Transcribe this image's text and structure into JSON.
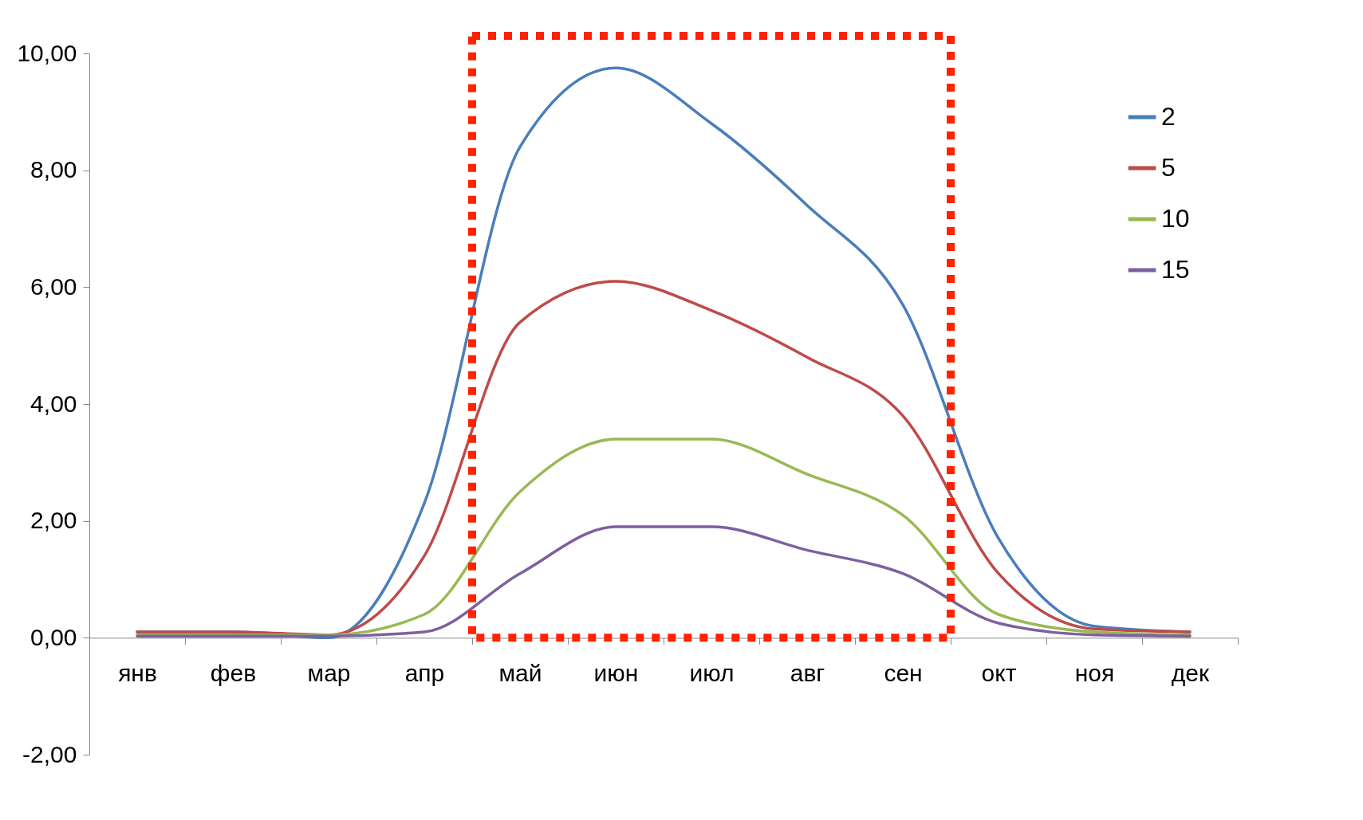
{
  "chart_data": {
    "type": "line",
    "categories": [
      "янв",
      "фев",
      "мар",
      "апр",
      "май",
      "июн",
      "июл",
      "авг",
      "сен",
      "окт",
      "ноя",
      "дек"
    ],
    "series": [
      {
        "name": "2",
        "color": "#4a7ebb",
        "values": [
          0.1,
          0.1,
          0.0,
          2.3,
          8.4,
          9.75,
          8.8,
          7.4,
          5.7,
          1.7,
          0.2,
          0.1
        ]
      },
      {
        "name": "5",
        "color": "#be4b48",
        "values": [
          0.1,
          0.1,
          0.05,
          1.4,
          5.4,
          6.1,
          5.6,
          4.8,
          3.8,
          1.1,
          0.15,
          0.1
        ]
      },
      {
        "name": "10",
        "color": "#98b954",
        "values": [
          0.05,
          0.05,
          0.05,
          0.4,
          2.5,
          3.4,
          3.4,
          2.8,
          2.1,
          0.4,
          0.1,
          0.05
        ]
      },
      {
        "name": "15",
        "color": "#7d60a0",
        "values": [
          0.03,
          0.03,
          0.03,
          0.1,
          1.1,
          1.9,
          1.9,
          1.5,
          1.1,
          0.25,
          0.05,
          0.03
        ]
      }
    ],
    "ylim": [
      -2,
      10
    ],
    "yticks": [
      {
        "value": -2,
        "label": "-2,00"
      },
      {
        "value": 0,
        "label": "0,00"
      },
      {
        "value": 2,
        "label": "2,00"
      },
      {
        "value": 4,
        "label": "4,00"
      },
      {
        "value": 6,
        "label": "6,00"
      },
      {
        "value": 8,
        "label": "8,00"
      },
      {
        "value": 10,
        "label": "10,00"
      }
    ],
    "grid": false,
    "legend": "top right",
    "marker": "none",
    "line_style": "solid"
  }
}
